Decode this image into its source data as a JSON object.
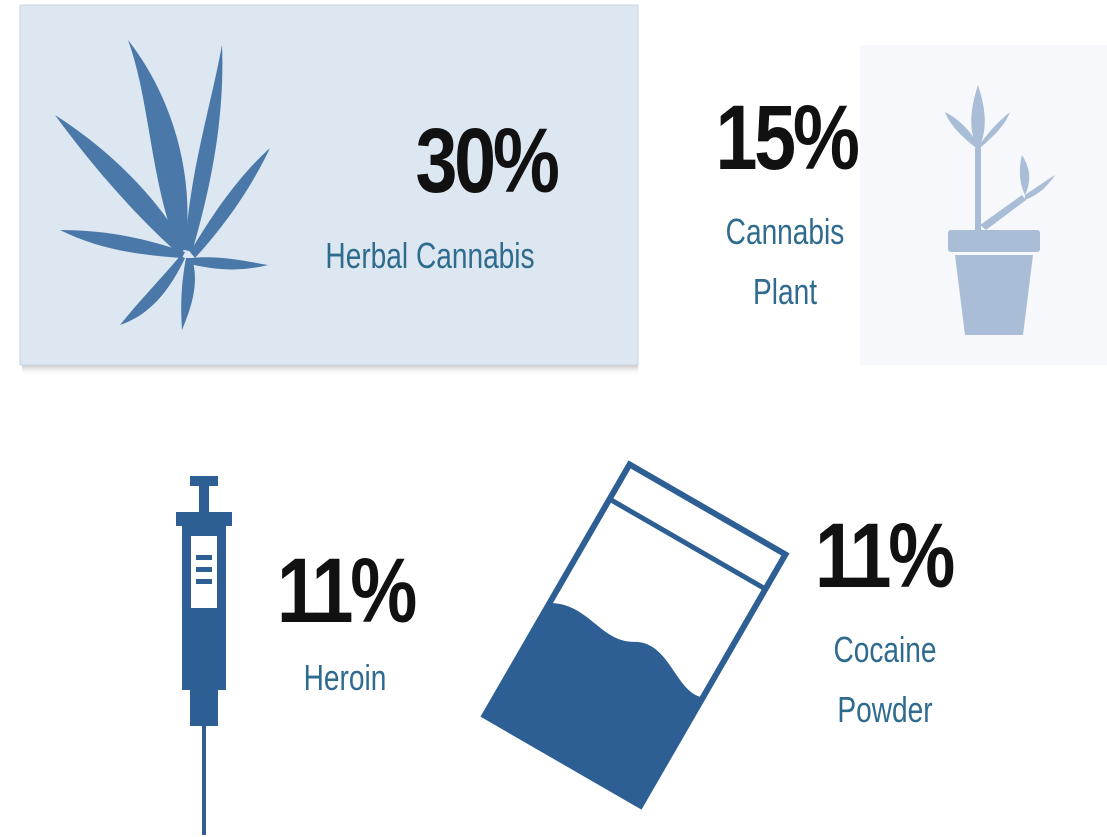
{
  "items": [
    {
      "value": "30%",
      "label": "Herbal Cannabis"
    },
    {
      "value": "15%",
      "label": "Cannabis Plant"
    },
    {
      "value": "11%",
      "label": "Heroin"
    },
    {
      "value": "11%",
      "label": "Cocaine Powder"
    }
  ]
}
